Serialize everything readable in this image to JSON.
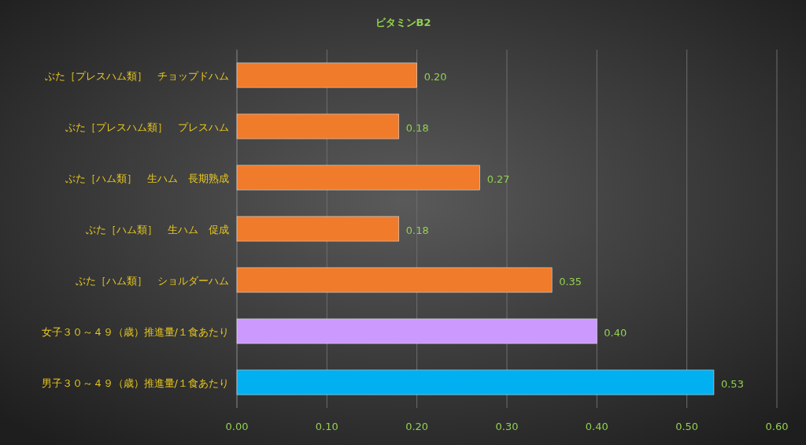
{
  "chart_data": {
    "type": "bar",
    "orientation": "horizontal",
    "title": "ビタミンB2",
    "categories": [
      "ぶた［プレスハム類］　チョップドハム",
      "ぶた［プレスハム類］　プレスハム",
      "ぶた［ハム類］　生ハム　長期熟成",
      "ぶた［ハム類］　生ハム　促成",
      "ぶた［ハム類］　ショルダーハム",
      "女子３０～４９（歳）推進量/１食あたり",
      "男子３０～４９（歳）推進量/１食あたり"
    ],
    "values": [
      0.2,
      0.18,
      0.27,
      0.18,
      0.35,
      0.4,
      0.53
    ],
    "colors": [
      "#f07b2a",
      "#f07b2a",
      "#f07b2a",
      "#f07b2a",
      "#f07b2a",
      "#cc99ff",
      "#00b0f0"
    ],
    "value_labels": [
      "0.20",
      "0.18",
      "0.27",
      "0.18",
      "0.35",
      "0.40",
      "0.53"
    ],
    "xlim": [
      0,
      0.6
    ],
    "xticks": [
      {
        "value": 0,
        "label": "0.00"
      },
      {
        "value": 0.1,
        "label": "0.10"
      },
      {
        "value": 0.2,
        "label": "0.20"
      },
      {
        "value": 0.3,
        "label": "0.30"
      },
      {
        "value": 0.4,
        "label": "0.40"
      },
      {
        "value": 0.5,
        "label": "0.50"
      },
      {
        "value": 0.6,
        "label": "0.60"
      }
    ],
    "grid": "x"
  }
}
